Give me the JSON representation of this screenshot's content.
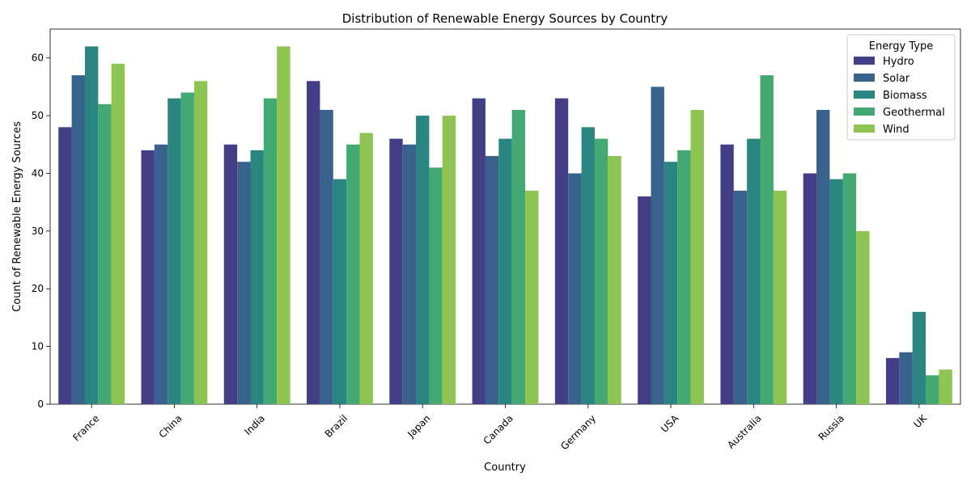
{
  "chart_data": {
    "type": "bar",
    "title": "Distribution of Renewable Energy Sources by Country",
    "xlabel": "Country",
    "ylabel": "Count of Renewable Energy Sources",
    "ylim": [
      0,
      65
    ],
    "yticks": [
      0,
      10,
      20,
      30,
      40,
      50,
      60
    ],
    "grid": false,
    "legend": {
      "title": "Energy Type",
      "placement": "top-right"
    },
    "categories": [
      "France",
      "China",
      "India",
      "Brazil",
      "Japan",
      "Canada",
      "Germany",
      "USA",
      "Australia",
      "Russia",
      "UK"
    ],
    "series": [
      {
        "name": "Hydro",
        "color": "#433e85",
        "values": [
          48,
          44,
          45,
          56,
          46,
          53,
          53,
          36,
          45,
          40,
          8
        ]
      },
      {
        "name": "Solar",
        "color": "#38618c",
        "values": [
          57,
          45,
          42,
          51,
          45,
          43,
          40,
          55,
          37,
          51,
          9
        ]
      },
      {
        "name": "Biomass",
        "color": "#2a8480",
        "values": [
          62,
          53,
          44,
          39,
          50,
          46,
          48,
          42,
          46,
          39,
          16
        ]
      },
      {
        "name": "Geothermal",
        "color": "#43a872",
        "values": [
          52,
          54,
          53,
          45,
          41,
          51,
          46,
          44,
          57,
          40,
          5
        ]
      },
      {
        "name": "Wind",
        "color": "#8ec452",
        "values": [
          59,
          56,
          62,
          47,
          50,
          37,
          43,
          51,
          37,
          30,
          6
        ]
      }
    ]
  }
}
